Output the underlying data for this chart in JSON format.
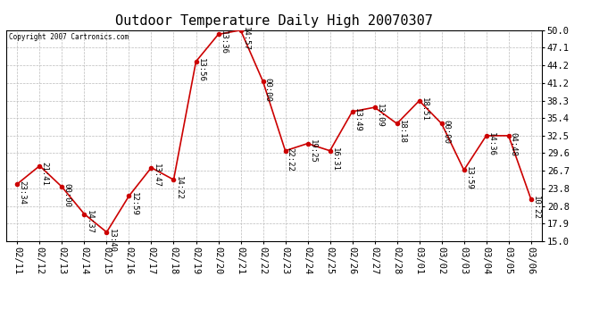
{
  "title": "Outdoor Temperature Daily High 20070307",
  "copyright": "Copyright 2007 Cartronics.com",
  "x_labels": [
    "02/11",
    "02/12",
    "02/13",
    "02/14",
    "02/15",
    "02/16",
    "02/17",
    "02/18",
    "02/19",
    "02/20",
    "02/21",
    "02/22",
    "02/23",
    "02/24",
    "02/25",
    "02/26",
    "02/27",
    "02/28",
    "03/01",
    "03/02",
    "03/03",
    "03/04",
    "03/05",
    "03/06"
  ],
  "y_values": [
    24.5,
    27.5,
    24.0,
    19.5,
    16.5,
    22.5,
    27.2,
    25.2,
    44.8,
    49.3,
    50.0,
    41.5,
    30.0,
    31.2,
    30.0,
    36.5,
    37.2,
    34.5,
    38.3,
    34.5,
    26.8,
    32.5,
    32.5,
    22.0
  ],
  "point_labels": [
    "23:34",
    "21:41",
    "00:00",
    "14:37",
    "13:40",
    "12:59",
    "13:47",
    "14:22",
    "13:56",
    "13:36",
    "14:57",
    "00:00",
    "22:22",
    "19:25",
    "16:31",
    "13:49",
    "13:09",
    "18:18",
    "18:51",
    "00:00",
    "13:59",
    "14:36",
    "04:48",
    "10:22"
  ],
  "y_ticks": [
    15.0,
    17.9,
    20.8,
    23.8,
    26.7,
    29.6,
    32.5,
    35.4,
    38.3,
    41.2,
    44.2,
    47.1,
    50.0
  ],
  "y_min": 15.0,
  "y_max": 50.0,
  "line_color": "#cc0000",
  "marker_color": "#cc0000",
  "bg_color": "#ffffff",
  "grid_color": "#bbbbbb",
  "title_fontsize": 11,
  "label_fontsize": 6.5,
  "tick_fontsize": 7.5
}
